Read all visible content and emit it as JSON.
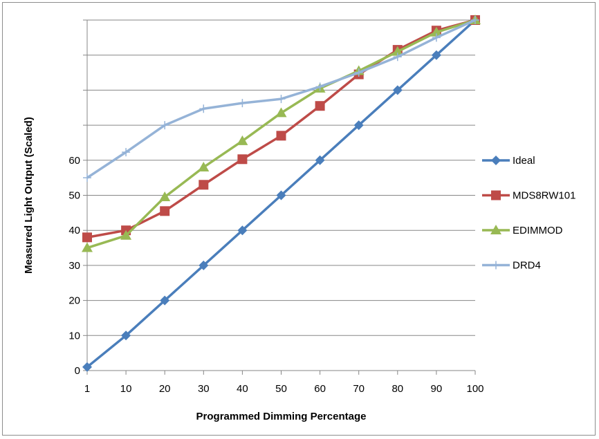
{
  "chart_data": {
    "type": "line",
    "title": "",
    "xlabel": "Programmed Dimming Percentage",
    "ylabel": "Measured Light Output (Scaled)",
    "categories": [
      "1",
      "10",
      "20",
      "30",
      "40",
      "50",
      "60",
      "70",
      "80",
      "90",
      "100"
    ],
    "y_tick_labels": [
      "0",
      "10",
      "20",
      "30",
      "40",
      "50",
      "60",
      "",
      "",
      "",
      "",
      ""
    ],
    "ylim": [
      0,
      100
    ],
    "y_tick_step": 10,
    "grid": true,
    "legend_position": "right",
    "series": [
      {
        "name": "Ideal",
        "color": "#4a7ebb",
        "marker": "diamond",
        "values": [
          1,
          10,
          20,
          30,
          40,
          50,
          60,
          70,
          80,
          90,
          100
        ]
      },
      {
        "name": "MDS8RW101",
        "color": "#be4b48",
        "marker": "square",
        "values": [
          38,
          40,
          45.5,
          53,
          60.3,
          67,
          75.5,
          84.5,
          91.5,
          97,
          100
        ]
      },
      {
        "name": "EDIMMOD",
        "color": "#98b954",
        "marker": "triangle",
        "values": [
          35,
          38.5,
          49.5,
          58,
          65.5,
          73.5,
          80.5,
          85.5,
          91,
          96.5,
          100
        ]
      },
      {
        "name": "DRD4",
        "color": "#95b3d7",
        "marker": "plus",
        "values": [
          55,
          62.3,
          70,
          74.7,
          76.3,
          77.5,
          81,
          85,
          89.5,
          95,
          100
        ]
      }
    ]
  }
}
